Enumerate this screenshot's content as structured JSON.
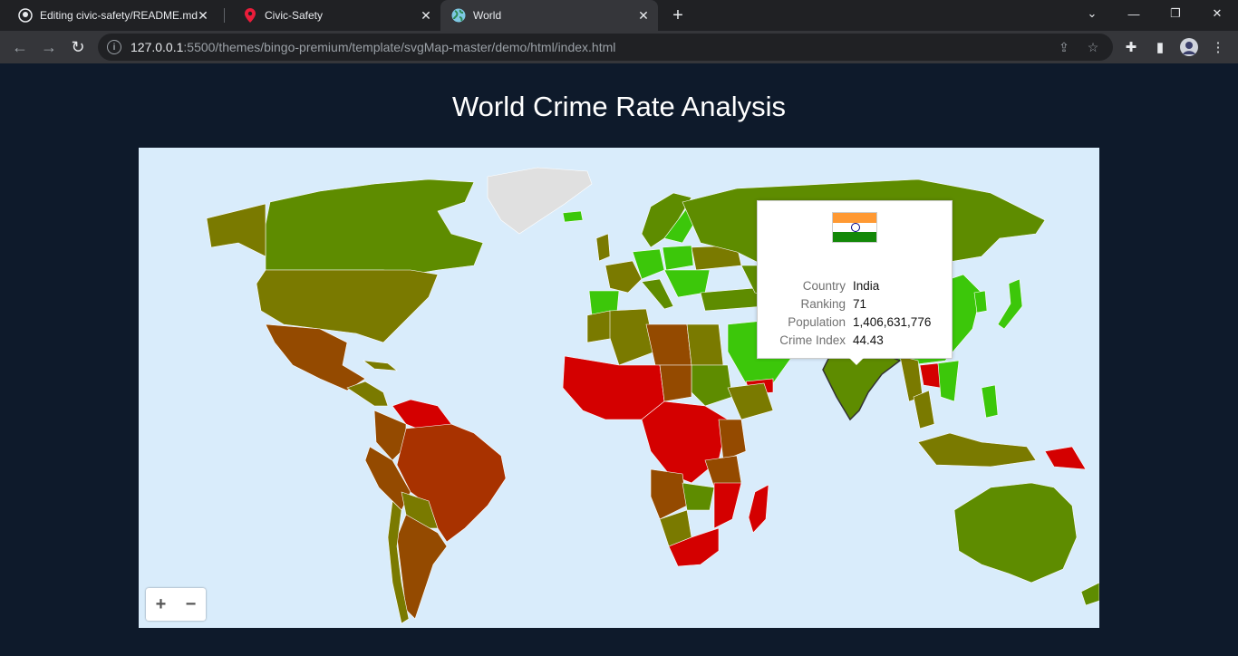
{
  "browser": {
    "tabs": [
      {
        "title": "Editing civic-safety/README.md",
        "icon": "github-icon",
        "active": false
      },
      {
        "title": "Civic-Safety",
        "icon": "map-pin-icon",
        "active": false
      },
      {
        "title": "World",
        "icon": "globe-icon",
        "active": true
      }
    ],
    "url_host": "127.0.0.1",
    "url_path": ":5500/themes/bingo-premium/template/svgMap-master/demo/html/index.html"
  },
  "page": {
    "title": "World Crime Rate Analysis"
  },
  "tooltip": {
    "flag_icon": "india-flag-icon",
    "rows": [
      {
        "label": "Country",
        "value": "India"
      },
      {
        "label": "Ranking",
        "value": "71"
      },
      {
        "label": "Population",
        "value": "1,406,631,776"
      },
      {
        "label": "Crime Index",
        "value": "44.43"
      }
    ]
  },
  "zoom": {
    "in_label": "+",
    "out_label": "−"
  },
  "colors": {
    "ocean": "#d9ecfb",
    "very_low": "#3cc70a",
    "low": "#5e8c00",
    "moderate": "#7a7a00",
    "high": "#944a00",
    "very_high": "#a83200",
    "extreme": "#d40000",
    "no_data": "#e0e0e0"
  }
}
